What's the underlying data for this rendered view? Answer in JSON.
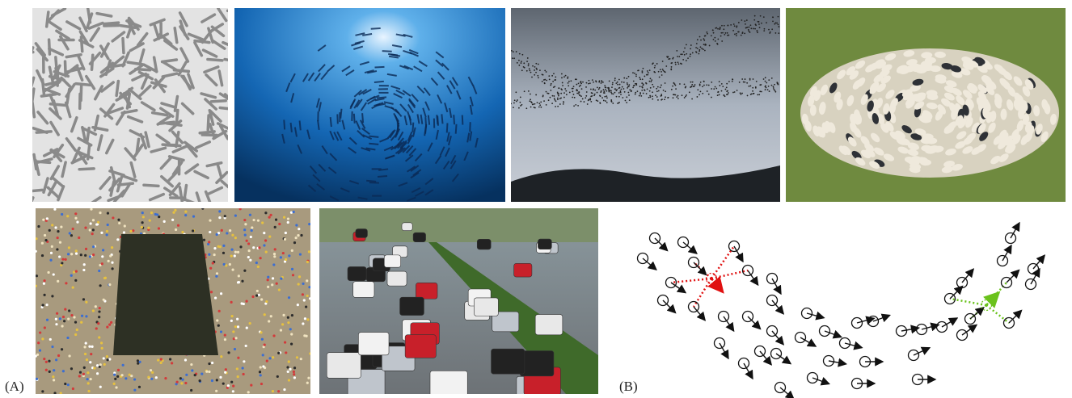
{
  "labels": {
    "a": "(A)",
    "b": "(B)"
  }
}
